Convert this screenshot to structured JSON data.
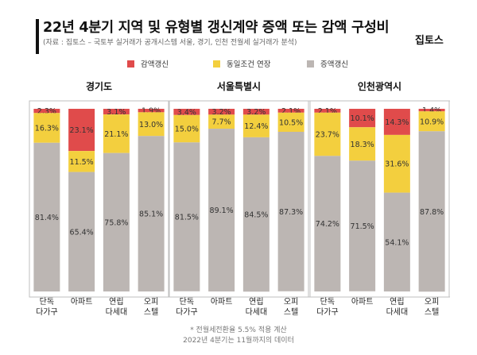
{
  "header": {
    "title": "22년 4분기 지역 및 유형별 갱신계약 증액 또는 감액 구성비",
    "subtitle": "(자료 : 집토스 – 국토부 실거래가 공개시스템 서울, 경기, 인천 전월세 실거래가 분석)",
    "brand": "집토스"
  },
  "footnote": {
    "line1": "* 전월세전환율 5.5% 적용 계산",
    "line2": "2022년 4분기는 11월까지의 데이터"
  },
  "chart_data": {
    "type": "bar",
    "stacked": true,
    "percent_stacked": true,
    "legend": [
      {
        "name": "감액갱신",
        "color": "#E04B4B"
      },
      {
        "name": "동일조건 연장",
        "color": "#F3CF3E"
      },
      {
        "name": "증액갱신",
        "color": "#BCB6B3"
      }
    ],
    "groups": [
      {
        "name": "경기도",
        "categories": [
          "단독\n다가구",
          "아파트",
          "연립\n다세대",
          "오피\n스텔"
        ],
        "series": [
          {
            "name": "감액갱신",
            "values": [
              2.3,
              23.1,
              3.1,
              1.9
            ],
            "labels": [
              "2.3%",
              "23.1%",
              "3.1%",
              "1.9%"
            ]
          },
          {
            "name": "동일조건 연장",
            "values": [
              16.3,
              11.5,
              21.1,
              13.0
            ],
            "labels": [
              "16.3%",
              "11.5%",
              "21.1%",
              "13.0%"
            ]
          },
          {
            "name": "증액갱신",
            "values": [
              81.4,
              65.4,
              75.8,
              85.1
            ],
            "labels": [
              "81.4%",
              "65.4%",
              "75.8%",
              "85.1%"
            ]
          }
        ]
      },
      {
        "name": "서울특별시",
        "categories": [
          "단독\n다가구",
          "아파트",
          "연립\n다세대",
          "오피\n스텔"
        ],
        "series": [
          {
            "name": "감액갱신",
            "values": [
              3.4,
              3.2,
              3.2,
              2.1
            ],
            "labels": [
              "3.4%",
              "3.2%",
              "3.2%",
              "2.1%"
            ]
          },
          {
            "name": "동일조건 연장",
            "values": [
              15.0,
              7.7,
              12.4,
              10.5
            ],
            "labels": [
              "15.0%",
              "7.7%",
              "12.4%",
              "10.5%"
            ]
          },
          {
            "name": "증액갱신",
            "values": [
              81.5,
              89.1,
              84.5,
              87.3
            ],
            "labels": [
              "81.5%",
              "89.1%",
              "84.5%",
              "87.3%"
            ]
          }
        ]
      },
      {
        "name": "인천광역시",
        "categories": [
          "단독\n다가구",
          "아파트",
          "연립\n다세대",
          "오피\n스텔"
        ],
        "series": [
          {
            "name": "감액갱신",
            "values": [
              2.1,
              10.1,
              14.3,
              1.4
            ],
            "labels": [
              "2.1%",
              "10.1%",
              "14.3%",
              "1.4%"
            ]
          },
          {
            "name": "동일조건 연장",
            "values": [
              23.7,
              18.3,
              31.6,
              10.9
            ],
            "labels": [
              "23.7%",
              "18.3%",
              "31.6%",
              "10.9%"
            ]
          },
          {
            "name": "증액갱신",
            "values": [
              74.2,
              71.5,
              54.1,
              87.8
            ],
            "labels": [
              "74.2%",
              "71.5%",
              "54.1%",
              "87.8%"
            ]
          }
        ]
      }
    ]
  }
}
